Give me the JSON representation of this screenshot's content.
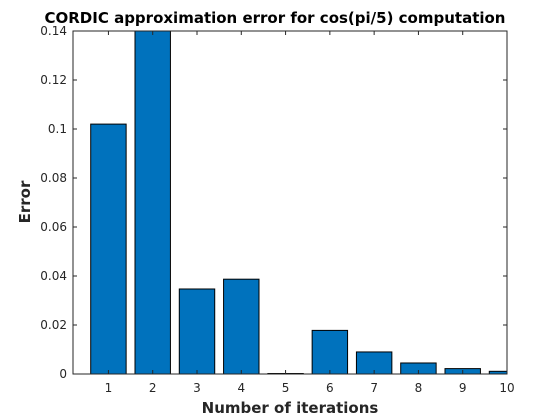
{
  "chart_data": {
    "type": "bar",
    "title": "CORDIC approximation error for cos(pi/5) computation",
    "xlabel": "Number of iterations",
    "ylabel": "Error",
    "categories": [
      "1",
      "2",
      "3",
      "4",
      "5",
      "6",
      "7",
      "8",
      "9",
      "10"
    ],
    "values": [
      0.102,
      0.14,
      0.0347,
      0.0387,
      0.0002,
      0.0178,
      0.009,
      0.0045,
      0.0022,
      0.0011
    ],
    "ylim": [
      0,
      0.14
    ],
    "xlim": [
      0.2,
      10.0
    ],
    "yticks": [
      "0",
      "0.02",
      "0.04",
      "0.06",
      "0.08",
      "0.1",
      "0.12",
      "0.14"
    ],
    "ytick_values": [
      0,
      0.02,
      0.04,
      0.06,
      0.08,
      0.1,
      0.12,
      0.14
    ],
    "grid": false,
    "bar_color": "#0072BD",
    "edge_color": "#000000",
    "axis_color": "#262626"
  }
}
